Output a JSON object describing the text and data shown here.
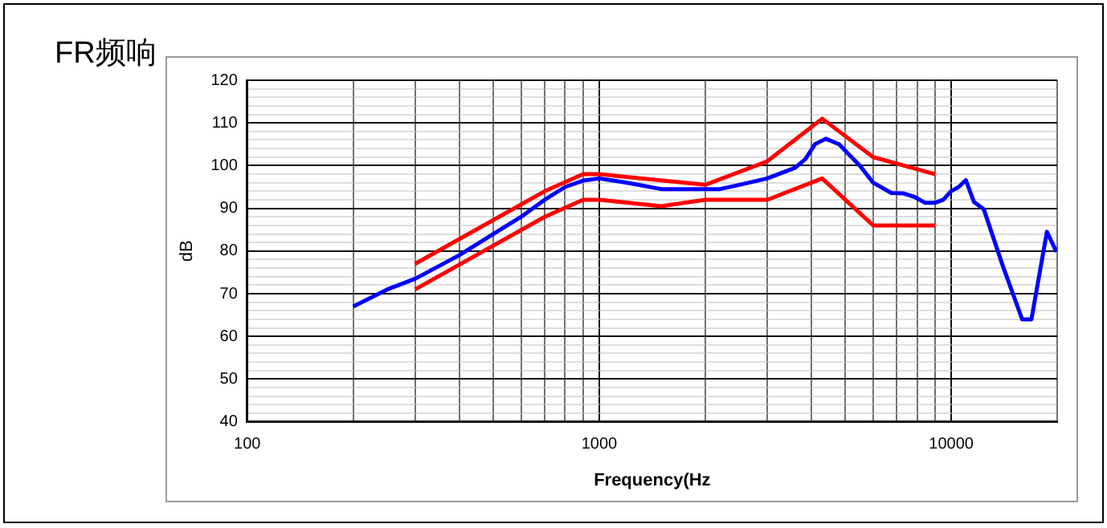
{
  "chart_data": {
    "type": "line",
    "title": "FR频响",
    "xlabel": "Frequency(Hz",
    "ylabel": "dB",
    "log": "x",
    "grid": true,
    "legend": false,
    "marker": "none",
    "line_style": "solid",
    "xlim": [
      100,
      20000
    ],
    "xticks": [
      100,
      {
        "value": 200,
        "label": null
      },
      {
        "value": 300,
        "label": null
      },
      {
        "value": 400,
        "label": null
      },
      {
        "value": 500,
        "label": null
      },
      {
        "value": 600,
        "label": null
      },
      {
        "value": 700,
        "label": null
      },
      {
        "value": 800,
        "label": null
      },
      {
        "value": 900,
        "label": null
      },
      1000,
      {
        "value": 2000,
        "label": null
      },
      {
        "value": 3000,
        "label": null
      },
      {
        "value": 4000,
        "label": null
      },
      {
        "value": 5000,
        "label": null
      },
      {
        "value": 6000,
        "label": null
      },
      {
        "value": 7000,
        "label": null
      },
      {
        "value": 8000,
        "label": null
      },
      {
        "value": 9000,
        "label": null
      },
      10000,
      {
        "value": 20000,
        "label": null
      }
    ],
    "ylim": [
      40,
      120
    ],
    "yticks": [
      40,
      {
        "value": 42,
        "label": null
      },
      {
        "value": 44,
        "label": null
      },
      {
        "value": 46,
        "label": null
      },
      {
        "value": 48,
        "label": null
      },
      50,
      {
        "value": 52,
        "label": null
      },
      {
        "value": 54,
        "label": null
      },
      {
        "value": 56,
        "label": null
      },
      {
        "value": 58,
        "label": null
      },
      60,
      {
        "value": 62,
        "label": null
      },
      {
        "value": 64,
        "label": null
      },
      {
        "value": 66,
        "label": null
      },
      {
        "value": 68,
        "label": null
      },
      70,
      {
        "value": 72,
        "label": null
      },
      {
        "value": 74,
        "label": null
      },
      {
        "value": 76,
        "label": null
      },
      {
        "value": 78,
        "label": null
      },
      80,
      {
        "value": 82,
        "label": null
      },
      {
        "value": 84,
        "label": null
      },
      {
        "value": 86,
        "label": null
      },
      {
        "value": 88,
        "label": null
      },
      90,
      {
        "value": 92,
        "label": null
      },
      {
        "value": 94,
        "label": null
      },
      {
        "value": 96,
        "label": null
      },
      {
        "value": 98,
        "label": null
      },
      100,
      {
        "value": 102,
        "label": null
      },
      {
        "value": 104,
        "label": null
      },
      {
        "value": 106,
        "label": null
      },
      {
        "value": 108,
        "label": null
      },
      110,
      {
        "value": 112,
        "label": null
      },
      {
        "value": 114,
        "label": null
      },
      {
        "value": 116,
        "label": null
      },
      {
        "value": 118,
        "label": null
      },
      120
    ],
    "series": [
      {
        "color": "#ff0000",
        "x": [
          300,
          700,
          900,
          1000,
          2000,
          3000,
          4300,
          6000,
          9000
        ],
        "values": [
          77,
          94,
          98,
          98,
          95.5,
          101,
          111,
          102,
          98
        ]
      },
      {
        "color": "#ff0000",
        "x": [
          300,
          700,
          900,
          1000,
          1500,
          2000,
          3000,
          4300,
          6000,
          9000
        ],
        "values": [
          71,
          88,
          92,
          92,
          90.5,
          92,
          92,
          97,
          86,
          86
        ]
      },
      {
        "color": "#0000ff",
        "x": [
          200,
          250,
          300,
          400,
          500,
          600,
          700,
          800,
          900,
          1000,
          1200,
          1500,
          2000,
          2200,
          2500,
          3000,
          3600,
          3850,
          4100,
          4400,
          4800,
          5500,
          6000,
          6760,
          7300,
          7850,
          8420,
          9000,
          9500,
          9980,
          10500,
          11000,
          11600,
          12370,
          14000,
          15900,
          16900,
          18700,
          19900
        ],
        "values": [
          67,
          71,
          73.5,
          79,
          84,
          88,
          92,
          95,
          96.5,
          97,
          96,
          94.5,
          94.5,
          94.5,
          95.5,
          97,
          99.5,
          101.5,
          105,
          106.3,
          105,
          100,
          96,
          93.6,
          93.5,
          92.7,
          91.3,
          91.3,
          92,
          94,
          95,
          96.6,
          91.5,
          89.8,
          76.6,
          64,
          64,
          84.5,
          79.8
        ]
      }
    ]
  }
}
